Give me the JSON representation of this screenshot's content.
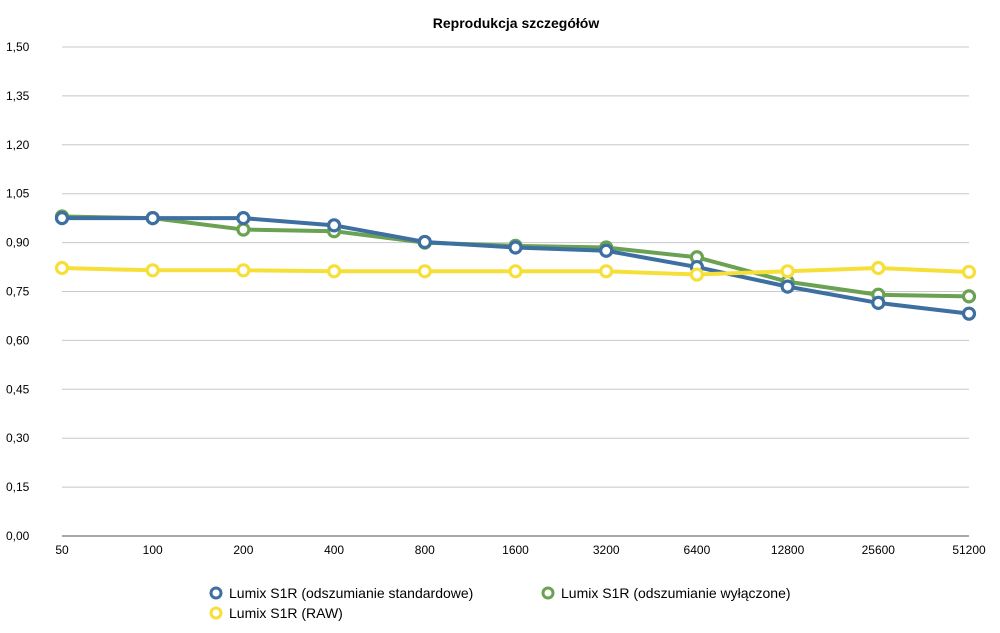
{
  "chart_data": {
    "type": "line",
    "title": "Reprodukcja szczegółów",
    "xlabel": "",
    "ylabel": "",
    "categories": [
      "50",
      "100",
      "200",
      "400",
      "800",
      "1600",
      "3200",
      "6400",
      "12800",
      "25600",
      "51200"
    ],
    "y_ticks": [
      "0,00",
      "0,15",
      "0,30",
      "0,45",
      "0,60",
      "0,75",
      "0,90",
      "1,05",
      "1,20",
      "1,35",
      "1,50"
    ],
    "ylim": [
      0,
      1.5
    ],
    "grid": true,
    "legend_position": "bottom",
    "series": [
      {
        "name": "Lumix S1R (odszumianie wyłączone)",
        "color": "#6aa153",
        "values": [
          0.98,
          0.975,
          0.94,
          0.935,
          0.9,
          0.89,
          0.885,
          0.855,
          0.78,
          0.74,
          0.735
        ]
      },
      {
        "name": "Lumix S1R (odszumianie standardowe)",
        "color": "#3e6fa1",
        "values": [
          0.975,
          0.975,
          0.975,
          0.953,
          0.902,
          0.885,
          0.875,
          0.825,
          0.765,
          0.715,
          0.682
        ]
      },
      {
        "name": "Lumix S1R (RAW)",
        "color": "#f7df3a",
        "values": [
          0.822,
          0.815,
          0.815,
          0.812,
          0.812,
          0.812,
          0.812,
          0.802,
          0.812,
          0.822,
          0.81
        ]
      }
    ]
  },
  "legend": [
    {
      "label": "Lumix S1R (odszumianie standardowe)",
      "color": "#3e6fa1"
    },
    {
      "label": "Lumix S1R (odszumianie wyłączone)",
      "color": "#6aa153"
    },
    {
      "label": "Lumix S1R (RAW)",
      "color": "#f7df3a"
    }
  ]
}
